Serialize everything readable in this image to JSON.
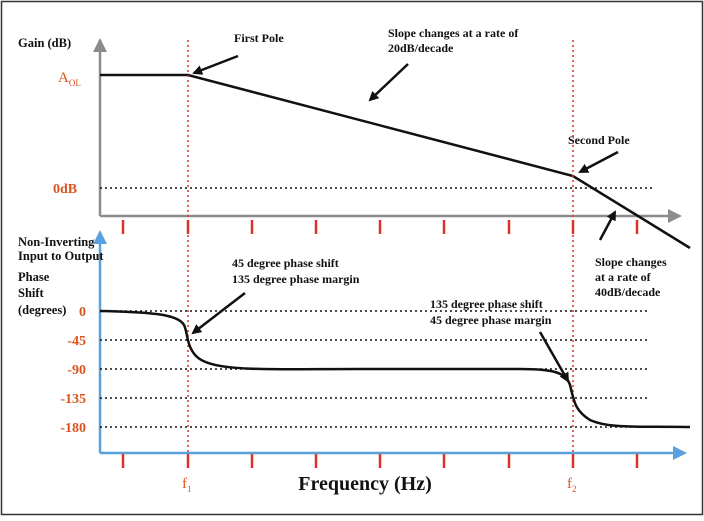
{
  "gain_plot": {
    "y_axis_label": "Gain (dB)",
    "aol_label": "A",
    "aol_sub": "OL",
    "zero_db_label": "0dB"
  },
  "phase_plot": {
    "y_axis_label_lines": [
      "Non-Inverting",
      "Input to Output",
      "Phase",
      "Shift"
    ],
    "y_axis_label_last": "(degrees)",
    "ticks": [
      "0",
      "-45",
      "-90",
      "-135",
      "-180"
    ]
  },
  "x_axis": {
    "title": "Frequency (Hz)",
    "f1_label": "f",
    "f1_sub": "1",
    "f2_label": "f",
    "f2_sub": "2"
  },
  "annotations": {
    "first_pole": "First Pole",
    "slope20_lines": [
      "Slope changes at a rate of",
      "20dB/decade"
    ],
    "second_pole": "Second Pole",
    "slope40_lines": [
      "Slope changes",
      "at a rate of",
      "40dB/decade"
    ],
    "phase45_lines": [
      "45 degree phase shift",
      "135 degree phase margin"
    ],
    "phase135_lines": [
      "135 degree phase shift",
      "45 degree phase margin"
    ]
  },
  "colors": {
    "axis_gray": "#8c8c8c",
    "axis_blue": "#5aa0dc",
    "marker_red": "#e0302a",
    "label_orange": "#d9541e"
  }
}
